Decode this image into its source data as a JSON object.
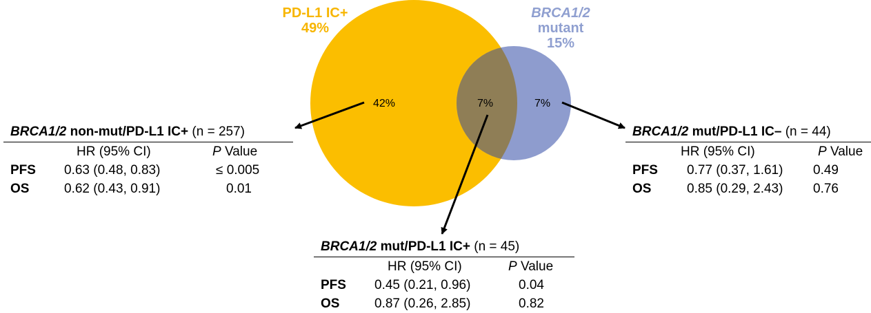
{
  "venn": {
    "colors": {
      "pdl1": "#fbbe00",
      "brca": "#8e9cce",
      "overlap": "#8f7e56"
    },
    "pdl1_label": {
      "line1": "PD-L1 IC+",
      "line2": "49%"
    },
    "brca_label": {
      "line1": "BRCA1/2",
      "line2": "mutant",
      "line3": "15%"
    },
    "regions": {
      "pdl1_only": "42%",
      "overlap": "7%",
      "brca_only": "7%"
    }
  },
  "tables": {
    "left": {
      "title_bold": "BRCA1/2",
      "title_rest": " non-mut/PD-L1 IC+",
      "n": " (n = 257)",
      "col_hr": "HR (95% CI)",
      "col_p_italic": "P",
      "col_p_rest": " Value",
      "rows": [
        {
          "label": "PFS",
          "hr": "0.63 (0.48, 0.83)",
          "p": "≤ 0.005"
        },
        {
          "label": "OS",
          "hr": "0.62 (0.43, 0.91)",
          "p": "0.01"
        }
      ]
    },
    "right": {
      "title_bold": "BRCA1/2",
      "title_rest": " mut/PD-L1 IC–",
      "n": " (n = 44)",
      "col_hr": "HR (95% CI)",
      "col_p_italic": "P",
      "col_p_rest": " Value",
      "rows": [
        {
          "label": "PFS",
          "hr": "0.77 (0.37, 1.61)",
          "p": "0.49"
        },
        {
          "label": "OS",
          "hr": "0.85 (0.29, 2.43)",
          "p": "0.76"
        }
      ]
    },
    "bottom": {
      "title_bold": "BRCA1/2",
      "title_rest": " mut/PD-L1 IC+",
      "n": " (n = 45)",
      "col_hr": "HR (95% CI)",
      "col_p_italic": "P",
      "col_p_rest": " Value",
      "rows": [
        {
          "label": "PFS",
          "hr": "0.45 (0.21, 0.96)",
          "p": "0.04"
        },
        {
          "label": "OS",
          "hr": "0.87 (0.26, 2.85)",
          "p": "0.82"
        }
      ]
    }
  }
}
